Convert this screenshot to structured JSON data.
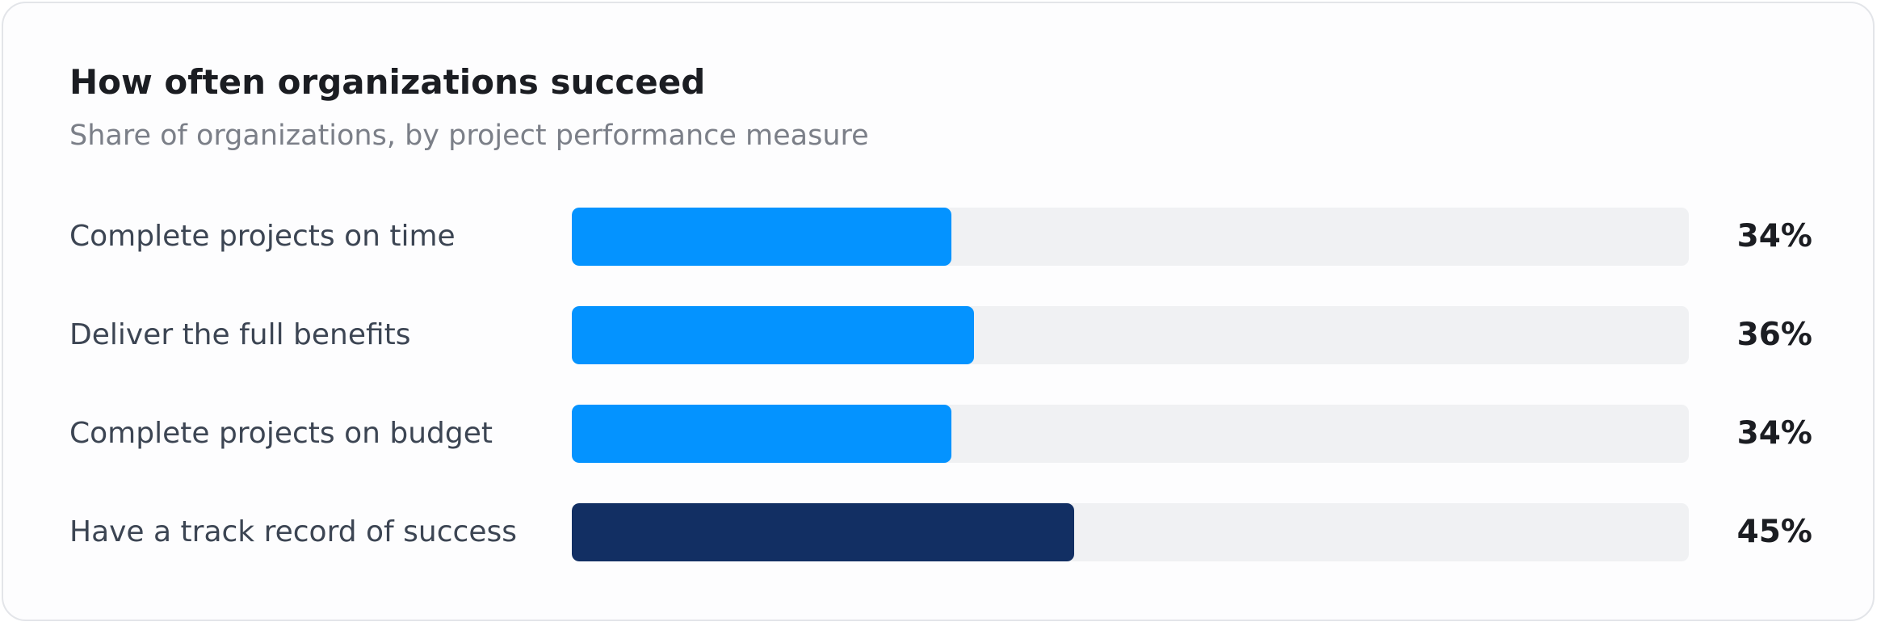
{
  "colors": {
    "bar_primary": "#0493ff",
    "bar_highlight": "#122f63",
    "track": "#f0f1f3"
  },
  "chart_data": {
    "type": "bar",
    "orientation": "horizontal",
    "title": "How often organizations succeed",
    "subtitle": "Share of organizations, by project performance measure",
    "categories": [
      "Complete projects on time",
      "Deliver the full benefits",
      "Complete projects on budget",
      "Have a track record of success"
    ],
    "values": [
      34,
      36,
      34,
      45
    ],
    "value_labels": [
      "34%",
      "36%",
      "34%",
      "45%"
    ],
    "highlighted": [
      false,
      false,
      false,
      true
    ],
    "xlim": [
      0,
      100
    ],
    "grid": false,
    "legend": "none"
  }
}
